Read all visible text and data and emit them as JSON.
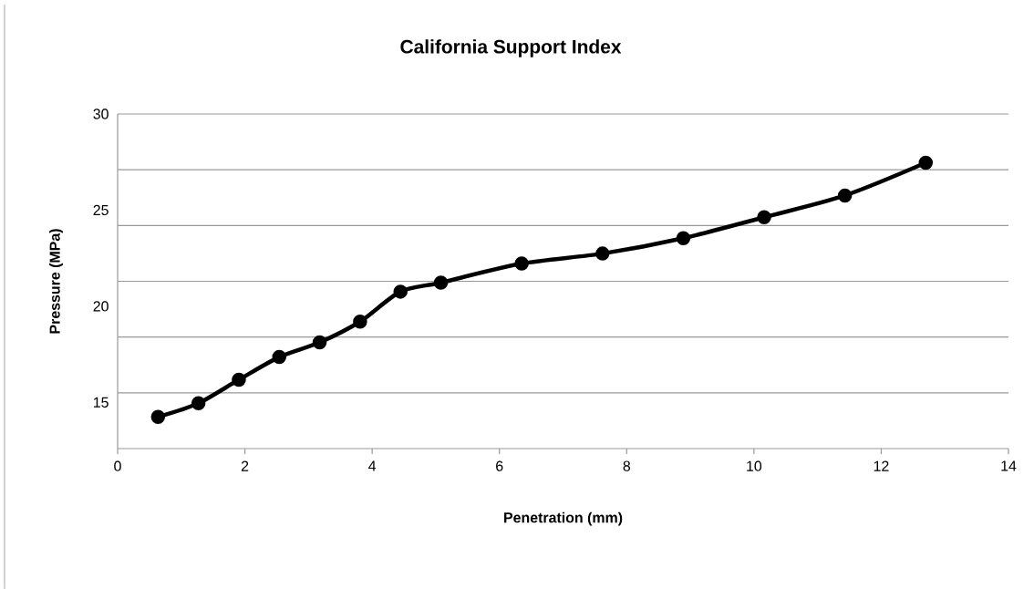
{
  "chart_data": {
    "type": "line",
    "title": "California Support Index",
    "xlabel": "Penetration (mm)",
    "ylabel": "Pressure (MPa)",
    "x": [
      0.635,
      1.27,
      1.905,
      2.54,
      3.175,
      3.81,
      4.445,
      5.08,
      6.35,
      7.62,
      8.89,
      10.16,
      11.43,
      12.7
    ],
    "values": [
      14.25,
      14.96,
      16.18,
      17.36,
      18.12,
      19.2,
      20.76,
      21.23,
      22.22,
      22.74,
      23.54,
      24.63,
      25.76,
      27.46
    ],
    "color": "#000000",
    "marker": "circle",
    "line_style": "solid",
    "xlim": [
      0,
      14
    ],
    "xticks": [
      0,
      2,
      4,
      6,
      8,
      10,
      12,
      14
    ],
    "ylim": [
      12.6,
      30
    ],
    "yticks": [
      15,
      20,
      25,
      30,
      {
        "value": 15.5,
        "label": null
      },
      {
        "value": 18.4,
        "label": null
      },
      {
        "value": 21.3,
        "label": null
      },
      {
        "value": 24.2,
        "label": null
      },
      {
        "value": 27.1,
        "label": null
      },
      {
        "value": 30,
        "label": null
      }
    ],
    "grid": "y"
  }
}
